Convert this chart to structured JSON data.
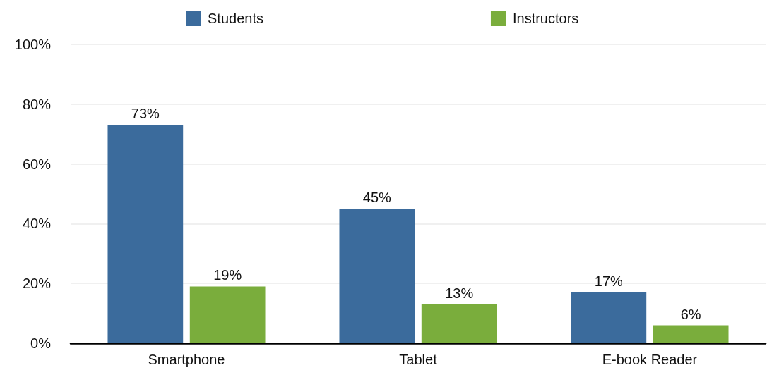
{
  "chart_data": {
    "type": "bar",
    "categories": [
      "Smartphone",
      "Tablet",
      "E-book Reader"
    ],
    "series": [
      {
        "name": "Students",
        "color": "#3b6b9c",
        "values": [
          73,
          45,
          17
        ],
        "value_labels": [
          "73%",
          "45%",
          "17%"
        ]
      },
      {
        "name": "Instructors",
        "color": "#7aad3c",
        "values": [
          19,
          13,
          6
        ],
        "value_labels": [
          "19%",
          "13%",
          "6%"
        ]
      }
    ],
    "ylim": [
      0,
      100
    ],
    "yticks": [
      {
        "value": 0,
        "label": "0%"
      },
      {
        "value": 20,
        "label": "20%"
      },
      {
        "value": 40,
        "label": "40%"
      },
      {
        "value": 60,
        "label": "60%"
      },
      {
        "value": 80,
        "label": "80%"
      },
      {
        "value": 100,
        "label": "100%"
      }
    ],
    "grid": "y",
    "legend": "top"
  }
}
